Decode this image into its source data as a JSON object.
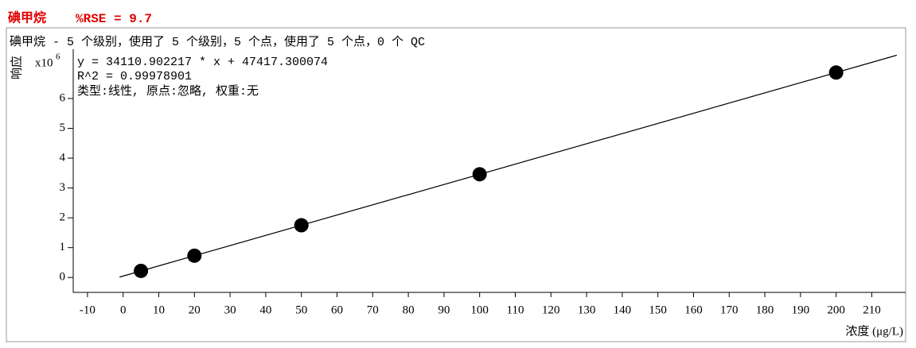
{
  "header": {
    "compound": "碘甲烷",
    "rse": "%RSE = 9.7"
  },
  "chart_data": {
    "type": "scatter",
    "subtitle": "碘甲烷 - 5 个级别，使用了 5 个级别，5 个点，使用了 5 个点，0 个 QC",
    "annotations": [
      "y = 34110.902217 * x  + 47417.300074",
      "R^2 = 0.99978901",
      "类型:线性, 原点:忽略, 权重:无"
    ],
    "y_label": "响应",
    "y_multiplier": "x10",
    "y_multiplier_exp": "6",
    "x_label": "浓度 (μg/L)",
    "series": [
      {
        "x": [
          5,
          20,
          50,
          100,
          200
        ],
        "values": [
          0.22,
          0.73,
          1.75,
          3.46,
          6.87
        ],
        "color": "#000000"
      }
    ],
    "fit_line": {
      "x": [
        -1,
        217
      ],
      "values": [
        0.013,
        7.45
      ],
      "color": "#000000"
    },
    "xlim": [
      -14,
      219.5
    ],
    "ylim": [
      -0.5,
      7.65
    ],
    "xticks": [
      -10,
      0,
      10,
      20,
      30,
      40,
      50,
      60,
      70,
      80,
      90,
      100,
      110,
      120,
      130,
      140,
      150,
      160,
      170,
      180,
      190,
      200,
      210
    ],
    "yticks": [
      0,
      1,
      2,
      3,
      4,
      5,
      6
    ]
  }
}
